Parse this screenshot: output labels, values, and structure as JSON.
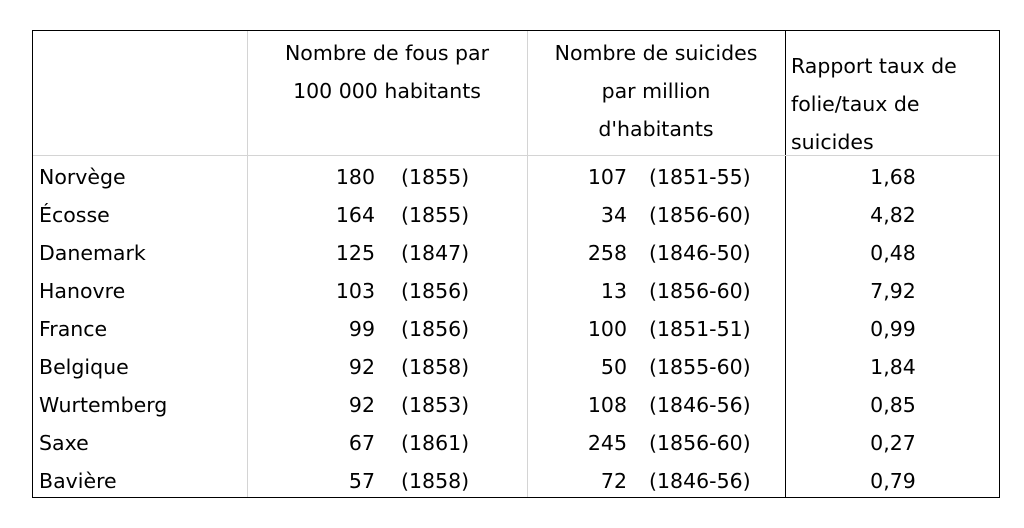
{
  "headers": {
    "country": "",
    "fous_line1": "Nombre de fous par",
    "fous_line2": "100 000 habitants",
    "suicides_line1": "Nombre de suicides",
    "suicides_line2": "par million",
    "suicides_line3": "d'habitants",
    "ratio_line1": "Rapport taux de",
    "ratio_line2": "folie/taux de",
    "ratio_line3": "suicides"
  },
  "rows": [
    {
      "country": "Norvège",
      "fous": "180",
      "fous_year": "(1855)",
      "suicides": "107",
      "suicides_years": "(1851-55)",
      "ratio": "1,68"
    },
    {
      "country": "Écosse",
      "fous": "164",
      "fous_year": "(1855)",
      "suicides": "34",
      "suicides_years": "(1856-60)",
      "ratio": "4,82"
    },
    {
      "country": "Danemark",
      "fous": "125",
      "fous_year": "(1847)",
      "suicides": "258",
      "suicides_years": "(1846-50)",
      "ratio": "0,48"
    },
    {
      "country": "Hanovre",
      "fous": "103",
      "fous_year": "(1856)",
      "suicides": "13",
      "suicides_years": "(1856-60)",
      "ratio": "7,92"
    },
    {
      "country": "France",
      "fous": "99",
      "fous_year": "(1856)",
      "suicides": "100",
      "suicides_years": "(1851-51)",
      "ratio": "0,99"
    },
    {
      "country": "Belgique",
      "fous": "92",
      "fous_year": "(1858)",
      "suicides": "50",
      "suicides_years": "(1855-60)",
      "ratio": "1,84"
    },
    {
      "country": "Wurtemberg",
      "fous": "92",
      "fous_year": "(1853)",
      "suicides": "108",
      "suicides_years": "(1846-56)",
      "ratio": "0,85"
    },
    {
      "country": "Saxe",
      "fous": "67",
      "fous_year": "(1861)",
      "suicides": "245",
      "suicides_years": "(1856-60)",
      "ratio": "0,27"
    },
    {
      "country": "Bavière",
      "fous": "57",
      "fous_year": "(1858)",
      "suicides": "72",
      "suicides_years": "(1846-56)",
      "ratio": "0,79"
    }
  ]
}
